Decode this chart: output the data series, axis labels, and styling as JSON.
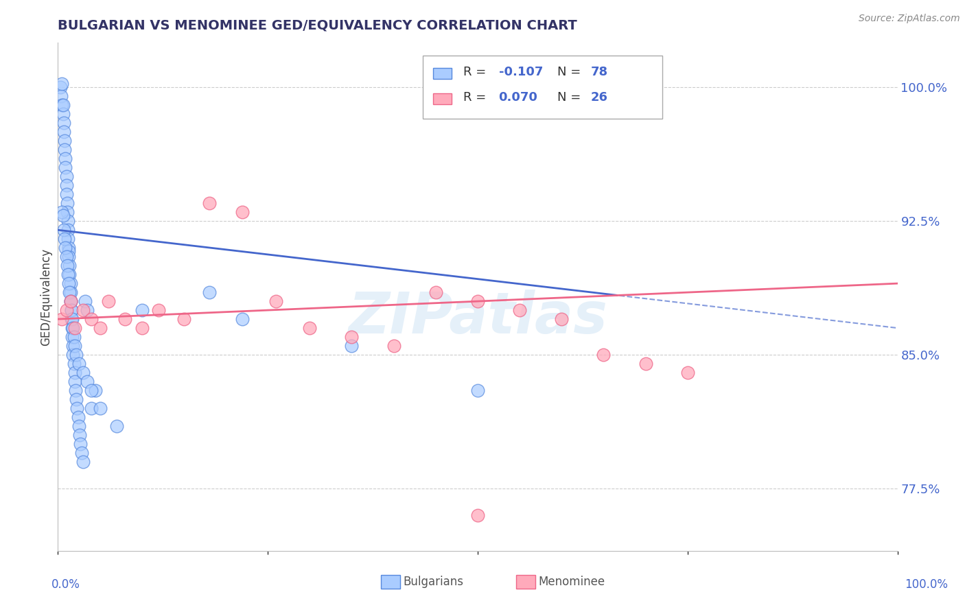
{
  "title": "BULGARIAN VS MENOMINEE GED/EQUIVALENCY CORRELATION CHART",
  "source": "Source: ZipAtlas.com",
  "ylabel": "GED/Equivalency",
  "xmin": 0.0,
  "xmax": 100.0,
  "ymin": 74.0,
  "ymax": 102.5,
  "yticks": [
    77.5,
    85.0,
    92.5,
    100.0
  ],
  "ytick_labels": [
    "77.5%",
    "85.0%",
    "92.5%",
    "100.0%"
  ],
  "bulgarian_color": "#aaccff",
  "menominee_color": "#ffaabb",
  "bulgarian_edge": "#5588dd",
  "menominee_edge": "#ee6688",
  "trend_blue": "#4466cc",
  "trend_pink": "#ee6688",
  "watermark": "ZIPatlas",
  "bulgarian_x": [
    0.3,
    0.4,
    0.5,
    0.5,
    0.6,
    0.6,
    0.7,
    0.7,
    0.8,
    0.8,
    0.9,
    0.9,
    1.0,
    1.0,
    1.0,
    1.1,
    1.1,
    1.2,
    1.2,
    1.2,
    1.3,
    1.3,
    1.3,
    1.4,
    1.4,
    1.5,
    1.5,
    1.5,
    1.6,
    1.6,
    1.7,
    1.7,
    1.8,
    1.8,
    1.9,
    2.0,
    2.0,
    2.1,
    2.2,
    2.3,
    2.4,
    2.5,
    2.6,
    2.7,
    2.8,
    3.0,
    3.2,
    3.5,
    4.0,
    4.5,
    0.5,
    0.6,
    0.7,
    0.8,
    0.9,
    1.0,
    1.1,
    1.2,
    1.3,
    1.4,
    1.5,
    1.6,
    1.7,
    1.8,
    1.9,
    2.0,
    2.2,
    2.5,
    3.0,
    3.5,
    4.0,
    5.0,
    7.0,
    10.0,
    18.0,
    22.0,
    35.0,
    50.0
  ],
  "bulgarian_y": [
    100.0,
    99.5,
    99.0,
    100.2,
    98.5,
    99.0,
    98.0,
    97.5,
    97.0,
    96.5,
    96.0,
    95.5,
    95.0,
    94.5,
    94.0,
    93.5,
    93.0,
    92.5,
    92.0,
    91.5,
    91.0,
    90.8,
    90.5,
    90.0,
    89.5,
    89.0,
    88.5,
    88.0,
    87.5,
    87.0,
    86.5,
    86.0,
    85.5,
    85.0,
    84.5,
    84.0,
    83.5,
    83.0,
    82.5,
    82.0,
    81.5,
    81.0,
    80.5,
    80.0,
    79.5,
    79.0,
    88.0,
    87.5,
    82.0,
    83.0,
    93.0,
    92.8,
    92.0,
    91.5,
    91.0,
    90.5,
    90.0,
    89.5,
    89.0,
    88.5,
    88.0,
    87.5,
    87.0,
    86.5,
    86.0,
    85.5,
    85.0,
    84.5,
    84.0,
    83.5,
    83.0,
    82.0,
    81.0,
    87.5,
    88.5,
    87.0,
    85.5,
    83.0
  ],
  "menominee_x": [
    0.5,
    1.0,
    1.5,
    2.0,
    3.0,
    4.0,
    5.0,
    6.0,
    8.0,
    10.0,
    12.0,
    15.0,
    18.0,
    22.0,
    26.0,
    30.0,
    35.0,
    40.0,
    45.0,
    50.0,
    55.0,
    60.0,
    65.0,
    70.0,
    75.0,
    50.0
  ],
  "menominee_y": [
    87.0,
    87.5,
    88.0,
    86.5,
    87.5,
    87.0,
    86.5,
    88.0,
    87.0,
    86.5,
    87.5,
    87.0,
    93.5,
    93.0,
    88.0,
    86.5,
    86.0,
    85.5,
    88.5,
    88.0,
    87.5,
    87.0,
    85.0,
    84.5,
    84.0,
    76.0
  ]
}
